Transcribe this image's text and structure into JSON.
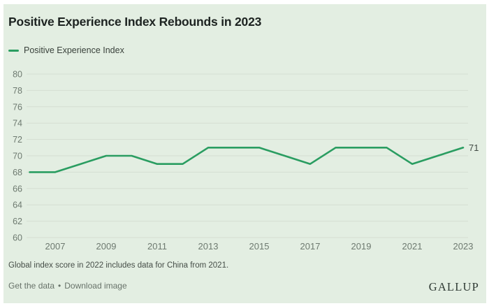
{
  "title": "Positive Experience Index Rebounds in 2023",
  "legend": {
    "label": "Positive Experience Index"
  },
  "chart_data": {
    "type": "line",
    "title": "Positive Experience Index Rebounds in 2023",
    "x": [
      2006,
      2007,
      2008,
      2009,
      2010,
      2011,
      2012,
      2013,
      2014,
      2015,
      2016,
      2017,
      2018,
      2019,
      2020,
      2021,
      2022,
      2023
    ],
    "series": [
      {
        "name": "Positive Experience Index",
        "values": [
          68,
          68,
          69,
          70,
          70,
          69,
          69,
          71,
          71,
          71,
          70,
          69,
          71,
          71,
          71,
          69,
          70,
          71
        ]
      }
    ],
    "xticks": [
      2007,
      2009,
      2011,
      2013,
      2015,
      2017,
      2019,
      2021,
      2023
    ],
    "yticks": [
      60,
      62,
      64,
      66,
      68,
      70,
      72,
      74,
      76,
      78,
      80
    ],
    "ylim": [
      60,
      80
    ],
    "grid": true,
    "legend_position": "top-left",
    "end_label": "71"
  },
  "footnote": "Global index score in 2022 includes data for China from 2021.",
  "footer": {
    "link1": "Get the data",
    "separator": "•",
    "link2": "Download image",
    "brand": "GALLUP"
  },
  "colors": {
    "card_background": "#e3eee2",
    "line": "#2a9d61",
    "grid": "#d5ded2",
    "tick_text": "#6e7a70",
    "title_text": "#1d2321",
    "footnote_text": "#454d47",
    "link_text": "#68736a",
    "end_label_text": "#414a44",
    "brand_text": "#2f3a34"
  }
}
